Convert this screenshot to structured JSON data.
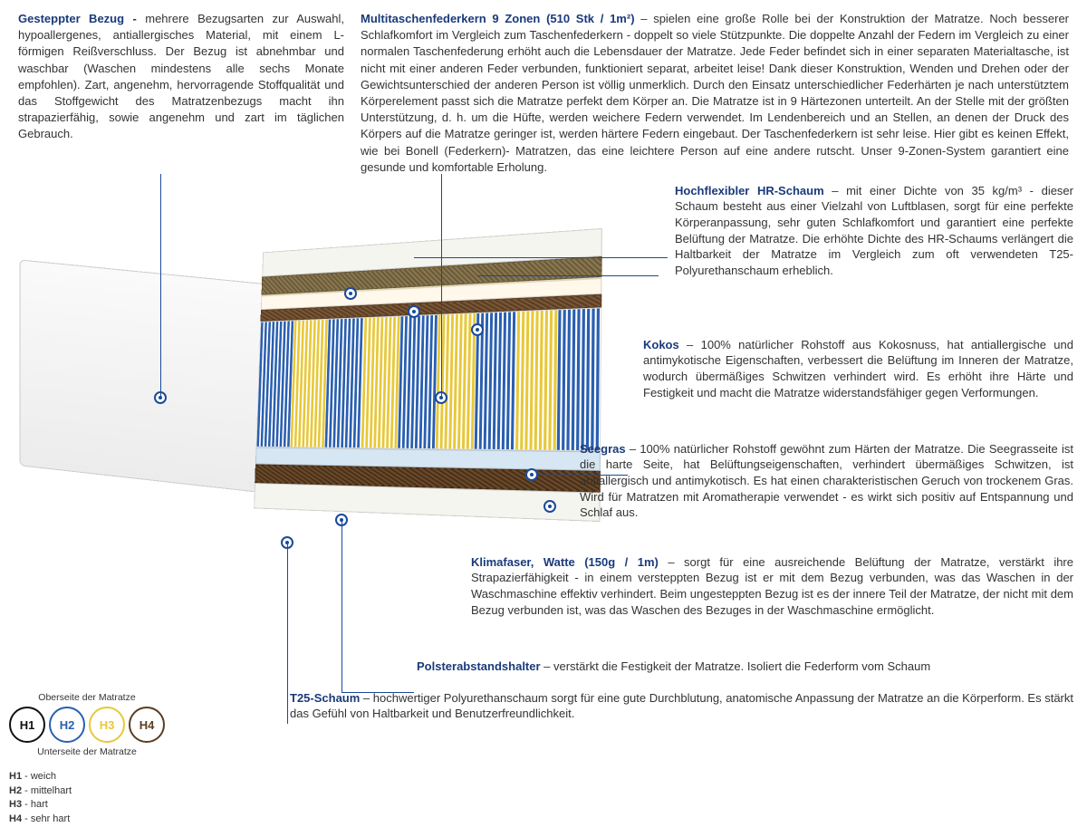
{
  "top": {
    "left_heading": "Gesteppter Bezug - ",
    "left_body": "mehrere Bezugsarten zur Auswahl, hypoallergenes, antiallergisches Material, mit einem L-förmigen Reißverschluss. Der Bezug ist abnehmbar und waschbar (Waschen mindestens alle sechs Monate empfohlen). Zart, angenehm, hervorragende Stoffqualität und das Stoffgewicht des Matratzenbezugs macht ihn strapazierfähig, sowie angenehm und zart im täglichen Gebrauch.",
    "right_heading": "Multitaschenfederkern 9 Zonen (510 Stk / 1m²)",
    "right_body": " – spielen eine große Rolle bei der Konstruktion der Matratze. Noch besserer Schlafkomfort im Vergleich zum Taschenfederkern - doppelt so viele Stützpunkte. Die doppelte Anzahl der Federn im Vergleich zu einer normalen Taschenfederung erhöht auch die Lebensdauer der Matratze. Jede Feder befindet sich in einer separaten Materialtasche, ist nicht mit einer anderen Feder verbunden, funktioniert separat, arbeitet leise! Dank dieser Konstruktion, Wenden und Drehen oder der Gewichtsunterschied der anderen Person ist völlig unmerklich. Durch den Einsatz unterschiedlicher Federhärten je nach unterstütztem Körperelement passt sich die Matratze perfekt dem Körper an. Die Matratze ist in 9 Härtezonen unterteilt. An der Stelle mit der größten Unterstützung, d. h. um die Hüfte, werden weichere Federn verwendet. Im Lendenbereich und an Stellen, an denen der Druck des Körpers auf die Matratze geringer ist, werden härtere Federn eingebaut. Der Taschenfederkern ist sehr leise. Hier gibt es keinen Effekt, wie bei Bonell (Federkern)- Matratzen, das eine leichtere Person auf eine andere rutscht. Unser 9-Zonen-System garantiert eine gesunde und komfortable Erholung."
  },
  "sections": {
    "hr": {
      "title": "Hochflexibler HR-Schaum",
      "body": " – mit einer Dichte von 35 kg/m³ - dieser Schaum besteht aus einer Vielzahl von Luftblasen, sorgt für eine perfekte Körperanpassung, sehr guten Schlafkomfort und garantiert eine perfekte Belüftung der Matratze. Die erhöhte Dichte des HR-Schaums verlängert die Haltbarkeit der Matratze im Vergleich zum oft verwendeten T25-Polyurethanschaum erheblich."
    },
    "kokos": {
      "title": "Kokos",
      "body": " – 100% natürlicher Rohstoff aus Kokosnuss, hat antiallergische und antimykotische Eigenschaften, verbessert die Belüftung im Inneren der Matratze, wodurch übermäßiges Schwitzen verhindert wird. Es erhöht ihre Härte und Festigkeit und macht die Matratze widerstandsfähiger gegen Verformungen."
    },
    "seegras": {
      "title": "Seegras",
      "body": " – 100% natürlicher Rohstoff gewöhnt zum Härten der Matratze. Die Seegrasseite ist die harte Seite, hat Belüftungseigenschaften, verhindert übermäßiges Schwitzen, ist antiallergisch und antimykotisch. Es hat einen charakteristischen Geruch von trockenem Gras. Wird für Matratzen mit Aromatherapie verwendet - es wirkt sich positiv auf Entspannung und Schlaf aus."
    },
    "klima": {
      "title": "Klimafaser, Watte (150g / 1m)",
      "body": " – sorgt für eine ausreichende Belüftung der Matratze, verstärkt ihre Strapazierfähigkeit - in einem versteppten Bezug ist er mit dem Bezug verbunden, was das Waschen in der Waschmaschine effektiv verhindert. Beim ungesteppten Bezug ist es der innere Teil der Matratze, der nicht mit dem Bezug verbunden ist, was das Waschen des Bezuges in der Waschmaschine ermöglicht."
    },
    "polster": {
      "title": "Polsterabstandshalter",
      "body": " – verstärkt die Festigkeit der Matratze. Isoliert die Federform vom Schaum"
    },
    "t25": {
      "title": "T25-Schaum",
      "body": " – hochwertiger Polyurethanschaum sorgt für eine gute Durchblutung, anatomische Anpassung der Matratze an die Körperform. Es stärkt das Gefühl von Haltbarkeit und Benutzerfreundlichkeit."
    }
  },
  "spring_zones": [
    {
      "color": "#2a5fb0"
    },
    {
      "color": "#e8c83a"
    },
    {
      "color": "#2a5fb0"
    },
    {
      "color": "#e8c83a"
    },
    {
      "color": "#2a5fb0"
    },
    {
      "color": "#e8c83a"
    },
    {
      "color": "#2a5fb0"
    },
    {
      "color": "#e8c83a"
    },
    {
      "color": "#2a5fb0"
    }
  ],
  "legend": {
    "top_label": "Oberseite der Matratze",
    "bottom_label": "Unterseite der Matratze",
    "circles": [
      {
        "label": "H1",
        "color": "#111111"
      },
      {
        "label": "H2",
        "color": "#2a5fb0"
      },
      {
        "label": "H3",
        "color": "#e8c83a"
      },
      {
        "label": "H4",
        "color": "#5a3d22"
      }
    ],
    "list": [
      {
        "k": "H1",
        "v": " - weich"
      },
      {
        "k": "H2",
        "v": " - mittelhart"
      },
      {
        "k": "H3",
        "v": " - hart"
      },
      {
        "k": "H4",
        "v": " - sehr hart"
      }
    ]
  },
  "colors": {
    "heading": "#1a3a7a",
    "marker": "#1a4a9a"
  }
}
